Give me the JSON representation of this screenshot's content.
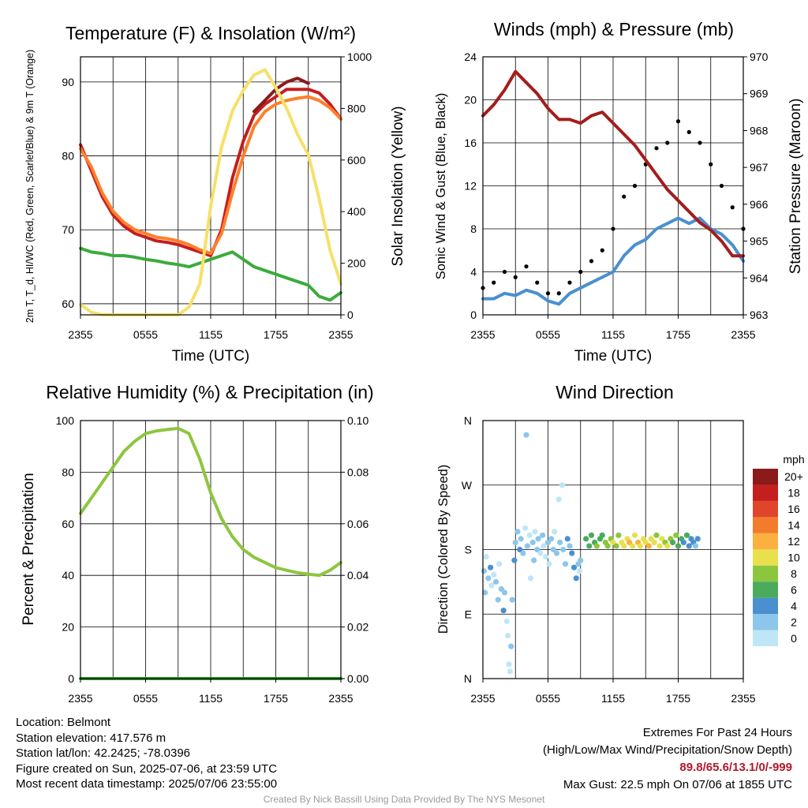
{
  "chart_data": [
    {
      "type": "line",
      "title": "Temperature (F) & Insolation (W/m²)",
      "xlabel": "Time (UTC)",
      "ylabel": "2m T, T_d, HI/WC (Red, Green, Scarlet/Blue) & 9m T (Orange)",
      "ylabel_right": "Solar Insolation (Yellow)",
      "x_ticks": [
        "2355",
        "0555",
        "1155",
        "1755",
        "2355"
      ],
      "ylim": [
        58.5,
        93.4
      ],
      "y_ticks": [
        60,
        70,
        80,
        90
      ],
      "ylim_right": [
        0,
        1000
      ],
      "y_ticks_right": [
        0,
        200,
        400,
        600,
        800,
        1000
      ],
      "grid": true,
      "x": [
        0,
        1,
        2,
        3,
        4,
        5,
        6,
        7,
        8,
        9,
        10,
        11,
        12,
        13,
        14,
        15,
        16,
        17,
        18,
        19,
        20,
        21,
        22,
        23,
        24
      ],
      "series": [
        {
          "axis": "left",
          "color": "#c41e1e",
          "values": [
            81.5,
            78,
            74.5,
            72,
            70.5,
            69.5,
            69,
            68.5,
            68.3,
            68,
            67.5,
            67,
            66.5,
            70,
            77,
            82,
            85.5,
            87,
            88,
            89,
            89,
            89,
            88.5,
            87,
            85
          ]
        },
        {
          "axis": "left",
          "color": "#ff7f2a",
          "values": [
            81,
            78.5,
            75,
            72.5,
            71,
            70,
            69.5,
            69,
            68.8,
            68.5,
            68,
            67.3,
            66.8,
            69.5,
            75,
            80,
            84,
            86,
            87,
            87.5,
            87.8,
            88,
            87.5,
            86.5,
            85
          ]
        },
        {
          "axis": "left",
          "color": "#3cab3c",
          "values": [
            67.5,
            67,
            66.8,
            66.5,
            66.5,
            66.3,
            66,
            65.8,
            65.5,
            65.3,
            65,
            65.5,
            66,
            66.5,
            67,
            66,
            65,
            64.5,
            64,
            63.5,
            63,
            62.5,
            61,
            60.5,
            61.5
          ]
        },
        {
          "axis": "left",
          "color": "#8b1a1a",
          "values": [
            83.5,
            null,
            null,
            null,
            null,
            null,
            null,
            null,
            null,
            null,
            null,
            null,
            null,
            null,
            null,
            null,
            86,
            87.5,
            89,
            90,
            90.5,
            89.8,
            null,
            null,
            null
          ]
        },
        {
          "axis": "right",
          "color": "#f7e06a",
          "values": [
            40,
            10,
            0,
            0,
            0,
            0,
            0,
            0,
            0,
            0,
            30,
            120,
            420,
            650,
            790,
            870,
            930,
            950,
            880,
            800,
            700,
            620,
            450,
            250,
            120
          ]
        }
      ]
    },
    {
      "type": "line",
      "title": "Winds (mph) & Pressure (mb)",
      "xlabel": "Time (UTC)",
      "ylabel": "Sonic Wind & Gust (Blue, Black)",
      "ylabel_right": "Station Pressure (Maroon)",
      "x_ticks": [
        "2355",
        "0555",
        "1155",
        "1755",
        "2355"
      ],
      "ylim": [
        0,
        24
      ],
      "y_ticks": [
        0,
        4,
        8,
        12,
        16,
        20,
        24
      ],
      "ylim_right": [
        963,
        970
      ],
      "y_ticks_right": [
        963,
        964,
        965,
        966,
        967,
        968,
        969,
        970
      ],
      "grid": true,
      "x": [
        0,
        1,
        2,
        3,
        4,
        5,
        6,
        7,
        8,
        9,
        10,
        11,
        12,
        13,
        14,
        15,
        16,
        17,
        18,
        19,
        20,
        21,
        22,
        23,
        24
      ],
      "series": [
        {
          "axis": "left",
          "color": "#4a90d0",
          "values": [
            1.5,
            1.5,
            2,
            1.8,
            2.3,
            2,
            1.3,
            1,
            2,
            2.5,
            3,
            3.5,
            4,
            5.5,
            6.5,
            7,
            8,
            8.5,
            9,
            8.5,
            9,
            8,
            7.5,
            6.5,
            5
          ]
        },
        {
          "axis": "left",
          "color": "#000000",
          "mode": "markers",
          "values": [
            2.5,
            3,
            4,
            3.5,
            4.5,
            3,
            2,
            2,
            3,
            4,
            5,
            6,
            8,
            11,
            12,
            14,
            15.5,
            16,
            18,
            17,
            16,
            14,
            12,
            10,
            8
          ]
        },
        {
          "axis": "right",
          "color": "#a31d1d",
          "values": [
            968.4,
            968.7,
            969.1,
            969.6,
            969.3,
            969.0,
            968.6,
            968.3,
            968.3,
            968.2,
            968.4,
            968.5,
            968.2,
            967.9,
            967.6,
            967.2,
            966.8,
            966.4,
            966.1,
            965.8,
            965.5,
            965.3,
            965.0,
            964.6,
            964.6
          ]
        }
      ]
    },
    {
      "type": "line",
      "title": "Relative Humidity (%) & Precipitation (in)",
      "ylabel": "Percent & Precipitation",
      "x_ticks": [
        "2355",
        "0555",
        "1155",
        "1755",
        "2355"
      ],
      "ylim": [
        0,
        100
      ],
      "y_ticks": [
        0,
        20,
        40,
        60,
        80,
        100
      ],
      "ylim_right": [
        0,
        0.1
      ],
      "y_ticks_right": [
        "0.00",
        "0.02",
        "0.04",
        "0.06",
        "0.08",
        "0.10"
      ],
      "grid": true,
      "x": [
        0,
        1,
        2,
        3,
        4,
        5,
        6,
        7,
        8,
        9,
        10,
        11,
        12,
        13,
        14,
        15,
        16,
        17,
        18,
        19,
        20,
        21,
        22,
        23,
        24
      ],
      "series": [
        {
          "axis": "left",
          "color": "#8dc63f",
          "values": [
            64,
            70,
            76,
            82,
            88,
            92,
            95,
            96,
            96.5,
            97,
            95,
            85,
            72,
            62,
            55,
            50,
            47,
            45,
            43,
            42,
            41,
            40.5,
            40,
            42,
            45
          ]
        },
        {
          "axis": "right",
          "color": "#2e9a2e",
          "values": [
            0,
            0,
            0,
            0,
            0,
            0,
            0,
            0,
            0,
            0,
            0,
            0,
            0,
            0,
            0,
            0,
            0,
            0,
            0,
            0,
            0,
            0,
            0,
            0,
            0
          ]
        }
      ]
    },
    {
      "type": "scatter",
      "title": "Wind Direction",
      "ylabel": "Direction (Colored By Speed)",
      "x_ticks": [
        "2355",
        "0555",
        "1155",
        "1755",
        "2355"
      ],
      "y_ticks": [
        "N",
        "E",
        "S",
        "W",
        "N"
      ],
      "ylim": [
        0,
        360
      ],
      "grid": true,
      "colorbar_title": "mph",
      "colorbar_labels": [
        "0",
        "2",
        "4",
        "6",
        "8",
        "10",
        "12",
        "14",
        "16",
        "18",
        "20+"
      ],
      "colorbar_colors": [
        "#bfe6f7",
        "#8cc6ea",
        "#4a90d0",
        "#4aab5c",
        "#8cc63f",
        "#e8e04c",
        "#fbb040",
        "#f27c2c",
        "#e0452b",
        "#c41e1e",
        "#8b1a1a"
      ],
      "points": [
        {
          "x": 0.1,
          "y": 150,
          "s": 2
        },
        {
          "x": 0.2,
          "y": 120,
          "s": 3
        },
        {
          "x": 0.3,
          "y": 170,
          "s": 1
        },
        {
          "x": 0.5,
          "y": 140,
          "s": 2
        },
        {
          "x": 0.7,
          "y": 155,
          "s": 4
        },
        {
          "x": 0.8,
          "y": 130,
          "s": 1
        },
        {
          "x": 1.0,
          "y": 145,
          "s": 1
        },
        {
          "x": 1.2,
          "y": 135,
          "s": 2
        },
        {
          "x": 1.4,
          "y": 110,
          "s": 3
        },
        {
          "x": 1.5,
          "y": 160,
          "s": 1
        },
        {
          "x": 1.7,
          "y": 125,
          "s": 2
        },
        {
          "x": 1.9,
          "y": 95,
          "s": 4
        },
        {
          "x": 2.0,
          "y": 120,
          "s": 2
        },
        {
          "x": 2.2,
          "y": 80,
          "s": 1
        },
        {
          "x": 2.3,
          "y": 60,
          "s": 0
        },
        {
          "x": 2.4,
          "y": 20,
          "s": 0
        },
        {
          "x": 2.5,
          "y": 10,
          "s": 1
        },
        {
          "x": 2.6,
          "y": 45,
          "s": 2
        },
        {
          "x": 2.7,
          "y": 110,
          "s": 3
        },
        {
          "x": 2.9,
          "y": 165,
          "s": 4
        },
        {
          "x": 3.0,
          "y": 190,
          "s": 3
        },
        {
          "x": 3.2,
          "y": 205,
          "s": 2
        },
        {
          "x": 3.4,
          "y": 180,
          "s": 4
        },
        {
          "x": 3.5,
          "y": 195,
          "s": 3
        },
        {
          "x": 3.7,
          "y": 175,
          "s": 2
        },
        {
          "x": 3.9,
          "y": 210,
          "s": 1
        },
        {
          "x": 4.0,
          "y": 340,
          "s": 3
        },
        {
          "x": 4.1,
          "y": 185,
          "s": 2
        },
        {
          "x": 4.3,
          "y": 200,
          "s": 1
        },
        {
          "x": 4.4,
          "y": 140,
          "s": 1
        },
        {
          "x": 4.6,
          "y": 190,
          "s": 2
        },
        {
          "x": 4.7,
          "y": 165,
          "s": 3
        },
        {
          "x": 4.8,
          "y": 205,
          "s": 1
        },
        {
          "x": 5.0,
          "y": 180,
          "s": 2
        },
        {
          "x": 5.1,
          "y": 195,
          "s": 3
        },
        {
          "x": 5.3,
          "y": 175,
          "s": 1
        },
        {
          "x": 5.5,
          "y": 200,
          "s": 2
        },
        {
          "x": 5.6,
          "y": 185,
          "s": 0
        },
        {
          "x": 5.8,
          "y": 170,
          "s": 1
        },
        {
          "x": 6.0,
          "y": 190,
          "s": 2
        },
        {
          "x": 6.1,
          "y": 160,
          "s": 1
        },
        {
          "x": 6.3,
          "y": 195,
          "s": 3
        },
        {
          "x": 6.5,
          "y": 180,
          "s": 2
        },
        {
          "x": 6.6,
          "y": 205,
          "s": 1
        },
        {
          "x": 6.8,
          "y": 175,
          "s": 2
        },
        {
          "x": 7.0,
          "y": 250,
          "s": 1
        },
        {
          "x": 7.1,
          "y": 190,
          "s": 3
        },
        {
          "x": 7.3,
          "y": 270,
          "s": 0
        },
        {
          "x": 7.4,
          "y": 180,
          "s": 2
        },
        {
          "x": 7.6,
          "y": 160,
          "s": 3
        },
        {
          "x": 7.8,
          "y": 195,
          "s": 4
        },
        {
          "x": 8.0,
          "y": 185,
          "s": 3
        },
        {
          "x": 8.2,
          "y": 175,
          "s": 4
        },
        {
          "x": 8.4,
          "y": 155,
          "s": 4
        },
        {
          "x": 8.6,
          "y": 140,
          "s": 4
        },
        {
          "x": 8.8,
          "y": 160,
          "s": 3
        },
        {
          "x": 8.9,
          "y": 150,
          "s": 1
        },
        {
          "x": 9.0,
          "y": 165,
          "s": 2
        },
        {
          "x": 9.5,
          "y": 195,
          "s": 6
        },
        {
          "x": 9.8,
          "y": 185,
          "s": 6
        },
        {
          "x": 10.0,
          "y": 200,
          "s": 7
        },
        {
          "x": 10.3,
          "y": 190,
          "s": 6
        },
        {
          "x": 10.5,
          "y": 185,
          "s": 8
        },
        {
          "x": 10.8,
          "y": 195,
          "s": 7
        },
        {
          "x": 11.0,
          "y": 200,
          "s": 6
        },
        {
          "x": 11.3,
          "y": 190,
          "s": 8
        },
        {
          "x": 11.5,
          "y": 185,
          "s": 9
        },
        {
          "x": 11.8,
          "y": 195,
          "s": 8
        },
        {
          "x": 12.0,
          "y": 190,
          "s": 10
        },
        {
          "x": 12.3,
          "y": 185,
          "s": 9
        },
        {
          "x": 12.5,
          "y": 200,
          "s": 8
        },
        {
          "x": 12.8,
          "y": 190,
          "s": 10
        },
        {
          "x": 13.0,
          "y": 185,
          "s": 11
        },
        {
          "x": 13.3,
          "y": 195,
          "s": 10
        },
        {
          "x": 13.5,
          "y": 190,
          "s": 12
        },
        {
          "x": 13.8,
          "y": 185,
          "s": 11
        },
        {
          "x": 14.0,
          "y": 200,
          "s": 10
        },
        {
          "x": 14.3,
          "y": 190,
          "s": 12
        },
        {
          "x": 14.5,
          "y": 185,
          "s": 11
        },
        {
          "x": 14.8,
          "y": 195,
          "s": 10
        },
        {
          "x": 15.0,
          "y": 190,
          "s": 11
        },
        {
          "x": 15.3,
          "y": 185,
          "s": 12
        },
        {
          "x": 15.5,
          "y": 195,
          "s": 11
        },
        {
          "x": 15.8,
          "y": 190,
          "s": 10
        },
        {
          "x": 16.0,
          "y": 200,
          "s": 9
        },
        {
          "x": 16.3,
          "y": 185,
          "s": 11
        },
        {
          "x": 16.5,
          "y": 195,
          "s": 10
        },
        {
          "x": 16.8,
          "y": 190,
          "s": 8
        },
        {
          "x": 17.0,
          "y": 185,
          "s": 10
        },
        {
          "x": 17.3,
          "y": 195,
          "s": 9
        },
        {
          "x": 17.5,
          "y": 190,
          "s": 7
        },
        {
          "x": 17.8,
          "y": 200,
          "s": 8
        },
        {
          "x": 18.0,
          "y": 185,
          "s": 6
        },
        {
          "x": 18.3,
          "y": 195,
          "s": 7
        },
        {
          "x": 18.5,
          "y": 190,
          "s": 5
        },
        {
          "x": 18.8,
          "y": 200,
          "s": 6
        },
        {
          "x": 19.0,
          "y": 185,
          "s": 4
        },
        {
          "x": 19.2,
          "y": 195,
          "s": 5
        },
        {
          "x": 19.4,
          "y": 190,
          "s": 4
        },
        {
          "x": 19.6,
          "y": 185,
          "s": 3
        },
        {
          "x": 19.8,
          "y": 195,
          "s": 4
        }
      ]
    }
  ],
  "footer": {
    "location": "Location: Belmont",
    "elevation": "Station elevation: 417.576 m",
    "latlon": "Station lat/lon: 42.2425; -78.0396",
    "created": "Figure created on Sun, 2025-07-06, at 23:59 UTC",
    "recent": "Most recent data timestamp: 2025/07/06 23:55:00",
    "extremes_title": "Extremes For Past 24 Hours",
    "extremes_legend": "(High/Low/Max Wind/Precipitation/Snow Depth)",
    "extremes_values": "89.8/65.6/13.1/0/-999",
    "max_gust": "Max Gust: 22.5 mph On 07/06 at 1855 UTC",
    "credit": "Created By Nick Bassill Using Data Provided By The NYS Mesonet"
  }
}
